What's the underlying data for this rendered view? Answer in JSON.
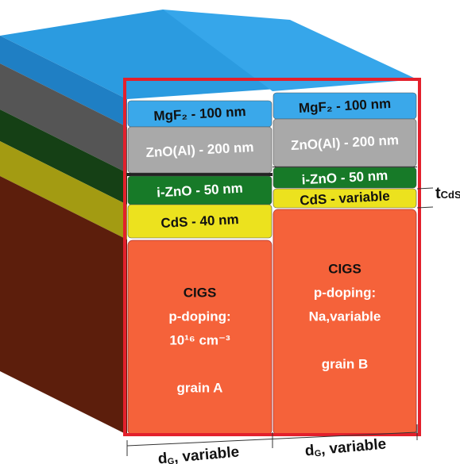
{
  "grains": [
    {
      "layers": [
        "MgF₂ - 100 nm",
        "ZnO(Al) - 200 nm",
        "i-ZnO - 50 nm",
        "CdS - 40 nm"
      ],
      "absorber": [
        "CIGS",
        "p-doping:",
        "10¹⁶ cm⁻³"
      ],
      "name": "grain A"
    },
    {
      "layers": [
        "MgF₂ - 100 nm",
        "ZnO(Al) - 200 nm",
        "i-ZnO - 50 nm",
        "CdS - variable"
      ],
      "absorber": [
        "CIGS",
        "p-doping:",
        "Na,variable"
      ],
      "name": "grain B"
    }
  ],
  "widths": [
    {
      "symbol": "d",
      "subscript": "G",
      "text": ", variable"
    },
    {
      "symbol": "d",
      "subscript": "G",
      "text": ", variable"
    }
  ],
  "thickness": {
    "symbol": "t",
    "subscript": "CdS"
  }
}
